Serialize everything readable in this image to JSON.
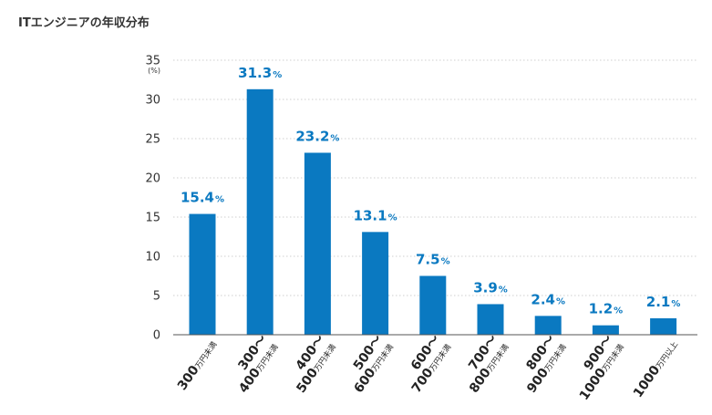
{
  "title": "ITエンジニアの年収分布",
  "chart_data": {
    "type": "bar",
    "title": "ITエンジニアの年収分布",
    "ylabel": "(%)",
    "ylim": [
      0,
      35
    ],
    "yticks": [
      0,
      5,
      10,
      15,
      20,
      25,
      30,
      35
    ],
    "grid": true,
    "data_label_unit": "%",
    "categories": [
      {
        "main": "300",
        "sub": "万円未満",
        "full": "300万円未満"
      },
      {
        "main": "300〜",
        "main2": "400",
        "sub": "万円未満",
        "full": "300〜400万円未満"
      },
      {
        "main": "400〜",
        "main2": "500",
        "sub": "万円未満",
        "full": "400〜500万円未満"
      },
      {
        "main": "500〜",
        "main2": "600",
        "sub": "万円未満",
        "full": "500〜600万円未満"
      },
      {
        "main": "600〜",
        "main2": "700",
        "sub": "万円未満",
        "full": "600〜700万円未満"
      },
      {
        "main": "700〜",
        "main2": "800",
        "sub": "万円未満",
        "full": "700〜800万円未満"
      },
      {
        "main": "800〜",
        "main2": "900",
        "sub": "万円未満",
        "full": "800〜900万円未満"
      },
      {
        "main": "900〜",
        "main2": "1000",
        "sub": "万円未満",
        "full": "900〜1000万円未満"
      },
      {
        "main": "1000",
        "sub": "万円以上",
        "full": "1000万円以上"
      }
    ],
    "values": [
      15.4,
      31.3,
      23.2,
      13.1,
      7.5,
      3.9,
      2.4,
      1.2,
      2.1
    ],
    "bar_color": "#0a79c1",
    "label_color": "#0a79c1"
  }
}
